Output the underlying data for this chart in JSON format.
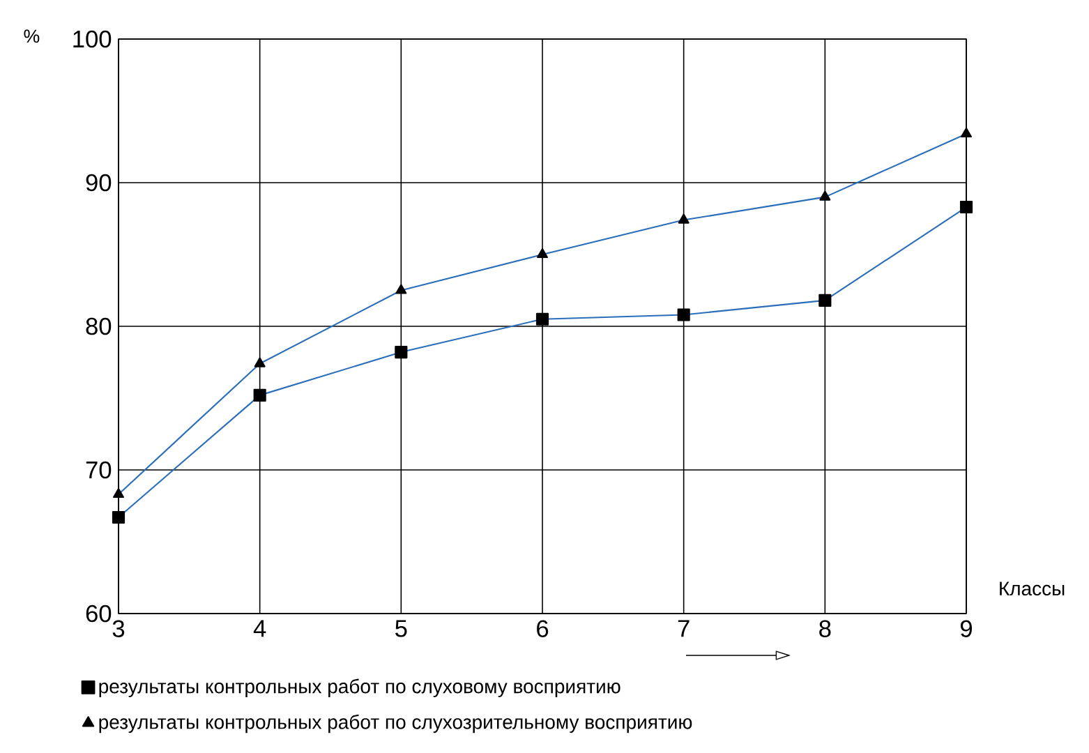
{
  "chart_data": {
    "type": "line",
    "xlabel": "Классы",
    "ylabel": "%",
    "x": [
      3,
      4,
      5,
      6,
      7,
      8,
      9
    ],
    "series": [
      {
        "name": "результаты контрольных работ по слуховому восприятию",
        "color": "#2a6ebb",
        "marker": "square",
        "values": [
          66.7,
          75.2,
          78.2,
          80.5,
          80.8,
          81.8,
          88.3
        ]
      },
      {
        "name": "результаты контрольных работ по слухозрительному восприятию",
        "color": "#2a6ebb",
        "marker": "triangle",
        "values": [
          68.3,
          77.4,
          82.5,
          85.0,
          87.4,
          89.0,
          93.4
        ]
      }
    ],
    "xlim": [
      3,
      9
    ],
    "xticks": [
      3,
      4,
      5,
      6,
      7,
      8,
      9
    ],
    "ylim": [
      60,
      100
    ],
    "yticks": [
      60,
      70,
      80,
      90,
      100
    ],
    "grid": true,
    "legend": "bottom",
    "line_style": "solid"
  }
}
